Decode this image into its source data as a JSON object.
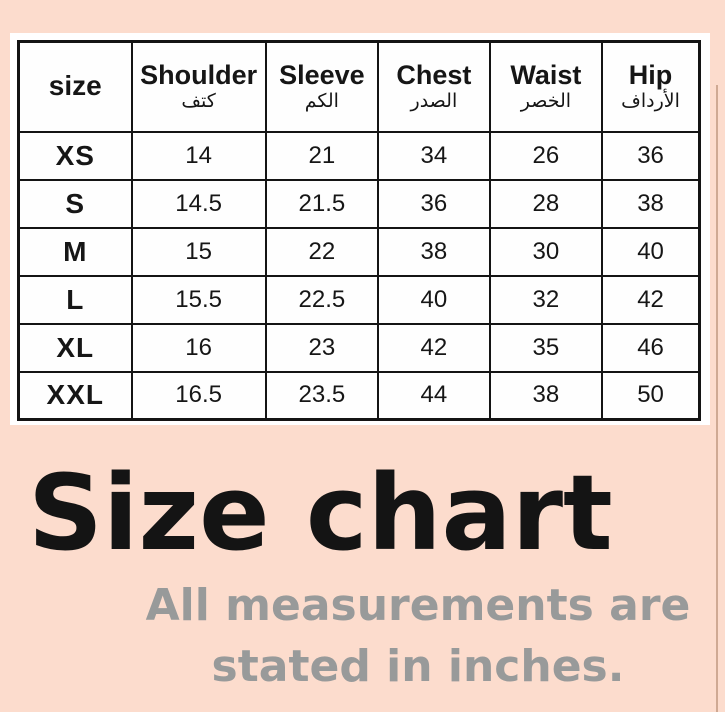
{
  "page": {
    "background_color": "#fcdccd",
    "table_border_color": "#141414",
    "title_color": "#141414",
    "subtitle_color": "#989a9a"
  },
  "title": "Size chart",
  "subtitle": {
    "line1": "All measurements are",
    "line2": "stated in inches."
  },
  "chart_data": {
    "type": "table",
    "title": "Size chart",
    "annotation": "All measurements are stated in inches.",
    "unit": "inches",
    "columns": [
      {
        "label": "size",
        "sublabel": ""
      },
      {
        "label": "Shoulder",
        "sublabel": "كتف"
      },
      {
        "label": "Sleeve",
        "sublabel": "الكم"
      },
      {
        "label": "Chest",
        "sublabel": "الصدر"
      },
      {
        "label": "Waist",
        "sublabel": "الخصر"
      },
      {
        "label": "Hip",
        "sublabel": "الأرداف"
      }
    ],
    "rows": [
      [
        "XS",
        "14",
        "21",
        "34",
        "26",
        "36"
      ],
      [
        "S",
        "14.5",
        "21.5",
        "36",
        "28",
        "38"
      ],
      [
        "M",
        "15",
        "22",
        "38",
        "30",
        "40"
      ],
      [
        "L",
        "15.5",
        "22.5",
        "40",
        "32",
        "42"
      ],
      [
        "XL",
        "16",
        "23",
        "42",
        "35",
        "46"
      ],
      [
        "XXL",
        "16.5",
        "23.5",
        "44",
        "38",
        "50"
      ]
    ]
  }
}
